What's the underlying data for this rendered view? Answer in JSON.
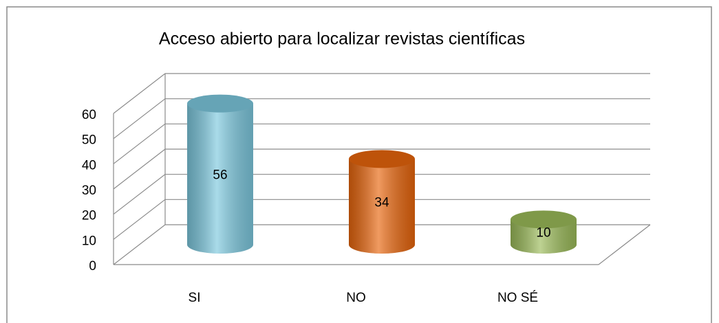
{
  "chart_data": {
    "type": "bar",
    "title": "Acceso abierto para localizar revistas científicas",
    "categories": [
      "SI",
      "NO",
      "NO SÉ"
    ],
    "values": [
      56,
      34,
      10
    ],
    "colors": [
      "#7cc8de",
      "#e8650c",
      "#9bbb59"
    ],
    "ylim": [
      0,
      60
    ],
    "yticks": [
      0,
      10,
      20,
      30,
      40,
      50,
      60
    ],
    "grid": true
  }
}
